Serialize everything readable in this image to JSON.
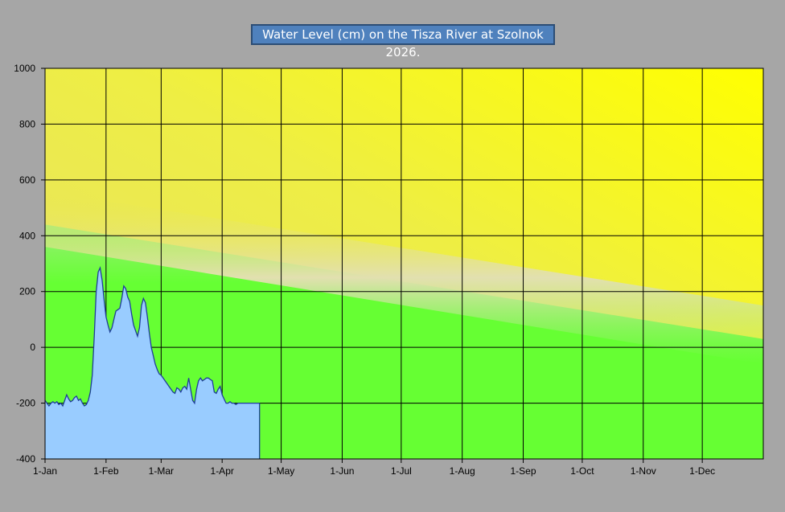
{
  "chart_data": {
    "type": "area",
    "title": "Water Level (cm) on the Tisza River at Szolnok 2026.",
    "xlabel": "",
    "ylabel": "",
    "ylim": [
      -400,
      1000
    ],
    "yticks": [
      -400,
      -200,
      0,
      200,
      400,
      600,
      800,
      1000
    ],
    "xticks": [
      "1-Jan",
      "1-Feb",
      "1-Mar",
      "1-Apr",
      "1-May",
      "1-Jun",
      "1-Jul",
      "1-Aug",
      "1-Sep",
      "1-Oct",
      "1-Nov",
      "1-Dec"
    ],
    "xtick_days": [
      0,
      31,
      59,
      90,
      120,
      151,
      181,
      212,
      243,
      273,
      304,
      334
    ],
    "x_days_total": 365,
    "grid": true,
    "series": [
      {
        "x_days": [
          0,
          1,
          2,
          3,
          4,
          5,
          6,
          7,
          8,
          9,
          10,
          11,
          12,
          13,
          14,
          15,
          16,
          17,
          18,
          19,
          20,
          21,
          22,
          23,
          24,
          25,
          26,
          27,
          28,
          29,
          30,
          31,
          32,
          33,
          34,
          35,
          36,
          37,
          38,
          39,
          40,
          41,
          42,
          43,
          44,
          45,
          46,
          47,
          48,
          49,
          50,
          51,
          52,
          53,
          54,
          55,
          56,
          57,
          58,
          59,
          60,
          61,
          62,
          63,
          64,
          65,
          66,
          67,
          68,
          69,
          70,
          71,
          72,
          73,
          74,
          75,
          76,
          77,
          78,
          79,
          80,
          81,
          82,
          83,
          84,
          85,
          86,
          87,
          88,
          89,
          90,
          91,
          92,
          93,
          94,
          95,
          96,
          97,
          98,
          99,
          100,
          101,
          102,
          103,
          104,
          105,
          106,
          107,
          108,
          109
        ],
        "values": [
          -190,
          -200,
          -210,
          -200,
          -195,
          -200,
          -195,
          -205,
          -200,
          -210,
          -190,
          -170,
          -185,
          -195,
          -190,
          -180,
          -175,
          -190,
          -185,
          -200,
          -210,
          -205,
          -190,
          -160,
          -100,
          40,
          200,
          270,
          285,
          240,
          170,
          110,
          80,
          55,
          70,
          100,
          130,
          135,
          140,
          175,
          220,
          210,
          180,
          165,
          120,
          80,
          60,
          40,
          70,
          150,
          175,
          160,
          110,
          50,
          0,
          -30,
          -60,
          -80,
          -95,
          -100,
          -110,
          -120,
          -130,
          -140,
          -150,
          -160,
          -165,
          -145,
          -150,
          -160,
          -145,
          -140,
          -150,
          -110,
          -150,
          -190,
          -200,
          -150,
          -120,
          -110,
          -120,
          -115,
          -110,
          -110,
          -115,
          -120,
          -160,
          -165,
          -150,
          -140,
          -170,
          -185,
          -200,
          -200,
          -195,
          -200,
          -200,
          -205,
          -200,
          -200,
          -200,
          -200,
          -200,
          -200,
          -200,
          -200,
          -200,
          -200,
          -200,
          -200
        ],
        "area_color": "#99ccff",
        "line_color": "#1f3d99"
      }
    ],
    "background_zones": [
      "green",
      "pale",
      "yellow"
    ]
  }
}
